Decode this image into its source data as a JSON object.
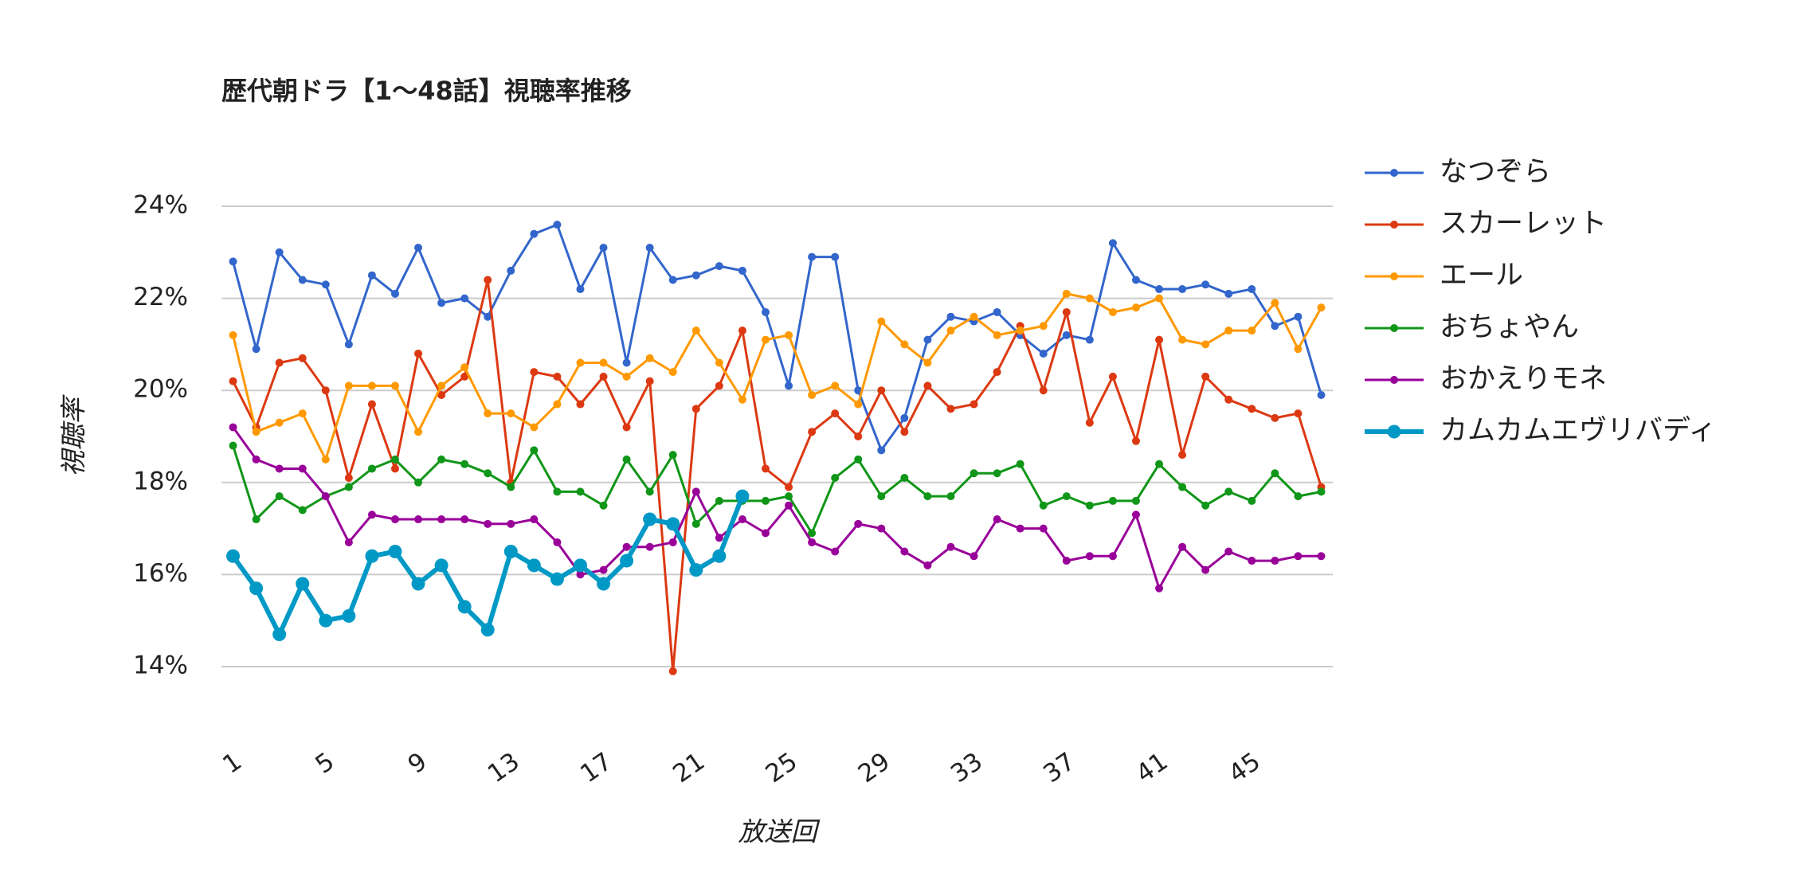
{
  "chart_data": {
    "type": "line",
    "title": "歴代朝ドラ【1〜48話】視聴率推移",
    "x_label": "放送回",
    "y_label": "視聴率",
    "x": [
      1,
      2,
      3,
      4,
      5,
      6,
      7,
      8,
      9,
      10,
      11,
      12,
      13,
      14,
      15,
      16,
      17,
      18,
      19,
      20,
      21,
      22,
      23,
      24,
      25,
      26,
      27,
      28,
      29,
      30,
      31,
      32,
      33,
      34,
      35,
      36,
      37,
      38,
      39,
      40,
      41,
      42,
      43,
      44,
      45,
      46,
      47,
      48
    ],
    "xlim": [
      0.5,
      48.5
    ],
    "xticks": [
      1,
      5,
      9,
      13,
      17,
      21,
      25,
      29,
      33,
      37,
      41,
      45
    ],
    "ylim": [
      14,
      24
    ],
    "yticks": [
      {
        "value": 14,
        "label": "14%"
      },
      {
        "value": 16,
        "label": "16%"
      },
      {
        "value": 18,
        "label": "18%"
      },
      {
        "value": 20,
        "label": "20%"
      },
      {
        "value": 22,
        "label": "22%"
      },
      {
        "value": 24,
        "label": "24%"
      }
    ],
    "grid": true,
    "legend": "right",
    "series": [
      {
        "name": "なつぞら",
        "color": "#3366cc",
        "values": [
          22.8,
          20.9,
          23.0,
          22.4,
          22.3,
          21.0,
          22.5,
          22.1,
          23.1,
          21.9,
          22.0,
          21.6,
          22.6,
          23.4,
          23.6,
          22.2,
          23.1,
          20.6,
          23.1,
          22.4,
          22.5,
          22.7,
          22.6,
          21.7,
          20.1,
          22.9,
          22.9,
          20.0,
          18.7,
          19.4,
          21.1,
          21.6,
          21.5,
          21.7,
          21.2,
          20.8,
          21.2,
          21.1,
          23.2,
          22.4,
          22.2,
          22.2,
          22.3,
          22.1,
          22.2,
          21.4,
          21.6,
          19.9
        ]
      },
      {
        "name": "スカーレット",
        "color": "#dc3912",
        "values": [
          20.2,
          19.2,
          20.6,
          20.7,
          20.0,
          18.1,
          19.7,
          18.3,
          20.8,
          19.9,
          20.3,
          22.4,
          18.0,
          20.4,
          20.3,
          19.7,
          20.3,
          19.2,
          20.2,
          13.9,
          19.6,
          20.1,
          21.3,
          18.3,
          17.9,
          19.1,
          19.5,
          19.0,
          20.0,
          19.1,
          20.1,
          19.6,
          19.7,
          20.4,
          21.4,
          20.0,
          21.7,
          19.3,
          20.3,
          18.9,
          21.1,
          18.6,
          20.3,
          19.8,
          19.6,
          19.4,
          19.5,
          17.9
        ]
      },
      {
        "name": "エール",
        "color": "#ff9900",
        "values": [
          21.2,
          19.1,
          19.3,
          19.5,
          18.5,
          20.1,
          20.1,
          20.1,
          19.1,
          20.1,
          20.5,
          19.5,
          19.5,
          19.2,
          19.7,
          20.6,
          20.6,
          20.3,
          20.7,
          20.4,
          21.3,
          20.6,
          19.8,
          21.1,
          21.2,
          19.9,
          20.1,
          19.7,
          21.5,
          21.0,
          20.6,
          21.3,
          21.6,
          21.2,
          21.3,
          21.4,
          22.1,
          22.0,
          21.7,
          21.8,
          22.0,
          21.1,
          21.0,
          21.3,
          21.3,
          21.9,
          20.9,
          21.8
        ]
      },
      {
        "name": "おちょやん",
        "color": "#109618",
        "values": [
          18.8,
          17.2,
          17.7,
          17.4,
          17.7,
          17.9,
          18.3,
          18.5,
          18.0,
          18.5,
          18.4,
          18.2,
          17.9,
          18.7,
          17.8,
          17.8,
          17.5,
          18.5,
          17.8,
          18.6,
          17.1,
          17.6,
          17.6,
          17.6,
          17.7,
          16.9,
          18.1,
          18.5,
          17.7,
          18.1,
          17.7,
          17.7,
          18.2,
          18.2,
          18.4,
          17.5,
          17.7,
          17.5,
          17.6,
          17.6,
          18.4,
          17.9,
          17.5,
          17.8,
          17.6,
          18.2,
          17.7,
          17.8
        ]
      },
      {
        "name": "おかえりモネ",
        "color": "#990099",
        "values": [
          19.2,
          18.5,
          18.3,
          18.3,
          17.7,
          16.7,
          17.3,
          17.2,
          17.2,
          17.2,
          17.2,
          17.1,
          17.1,
          17.2,
          16.7,
          16.0,
          16.1,
          16.6,
          16.6,
          16.7,
          17.8,
          16.8,
          17.2,
          16.9,
          17.5,
          16.7,
          16.5,
          17.1,
          17.0,
          16.5,
          16.2,
          16.6,
          16.4,
          17.2,
          17.0,
          17.0,
          16.3,
          16.4,
          16.4,
          17.3,
          15.7,
          16.6,
          16.1,
          16.5,
          16.3,
          16.3,
          16.4,
          16.4
        ]
      },
      {
        "name": "カムカムエヴリバディ",
        "color": "#0099c6",
        "values": [
          16.4,
          15.7,
          14.7,
          15.8,
          15.0,
          15.1,
          16.4,
          16.5,
          15.8,
          16.2,
          15.3,
          14.8,
          16.5,
          16.2,
          15.9,
          16.2,
          15.8,
          16.3,
          17.2,
          17.1,
          16.1,
          16.4,
          17.7,
          null,
          null,
          null,
          null,
          null,
          null,
          null,
          null,
          null,
          null,
          null,
          null,
          null,
          null,
          null,
          null,
          null,
          null,
          null,
          null,
          null,
          null,
          null,
          null,
          null
        ]
      }
    ]
  }
}
